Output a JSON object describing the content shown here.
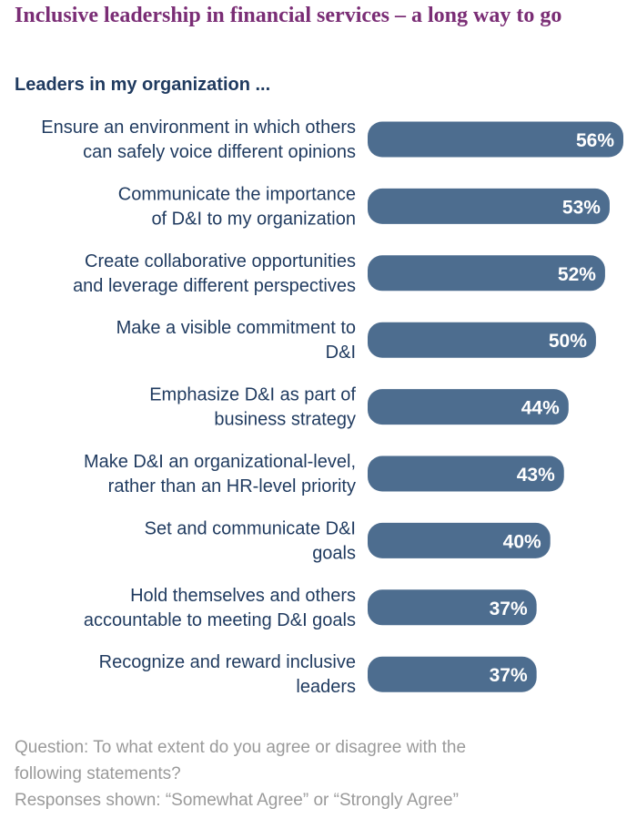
{
  "header": {
    "title": "Inclusive leadership in financial services – a long way to go",
    "subtitle": "Leaders in my organization ..."
  },
  "colors": {
    "title": "#7a2d75",
    "subtitle": "#1f3a5f",
    "bar": "#4d6d8f",
    "label": "#1f3a5f",
    "value": "#ffffff",
    "footnote": "#9a9a9a"
  },
  "chart_data": {
    "type": "bar",
    "orientation": "horizontal",
    "categories": [
      [
        "Ensure an environment in which others",
        "can safely voice different opinions"
      ],
      [
        "Communicate the importance",
        "of D&I to my organization"
      ],
      [
        "Create collaborative opportunities",
        "and leverage different perspectives"
      ],
      [
        "Make a visible commitment to",
        "D&I"
      ],
      [
        "Emphasize D&I as part of",
        "business strategy"
      ],
      [
        "Make D&I an organizational-level,",
        "rather than an HR-level priority"
      ],
      [
        "Set and communicate D&I",
        "goals"
      ],
      [
        "Hold themselves and others",
        "accountable to meeting D&I goals"
      ],
      [
        "Recognize and reward inclusive",
        "leaders"
      ]
    ],
    "values": [
      56,
      53,
      52,
      50,
      44,
      43,
      40,
      37,
      37
    ],
    "value_labels": [
      "56%",
      "53%",
      "52%",
      "50%",
      "44%",
      "43%",
      "40%",
      "37%",
      "37%"
    ],
    "unit": "%",
    "xlim": [
      0,
      56
    ],
    "grid": false
  },
  "footnote": {
    "question_line1": "Question: To what extent do you agree or disagree with the",
    "question_line2": "following statements?",
    "responses": "Responses shown: “Somewhat Agree” or “Strongly Agree”"
  }
}
